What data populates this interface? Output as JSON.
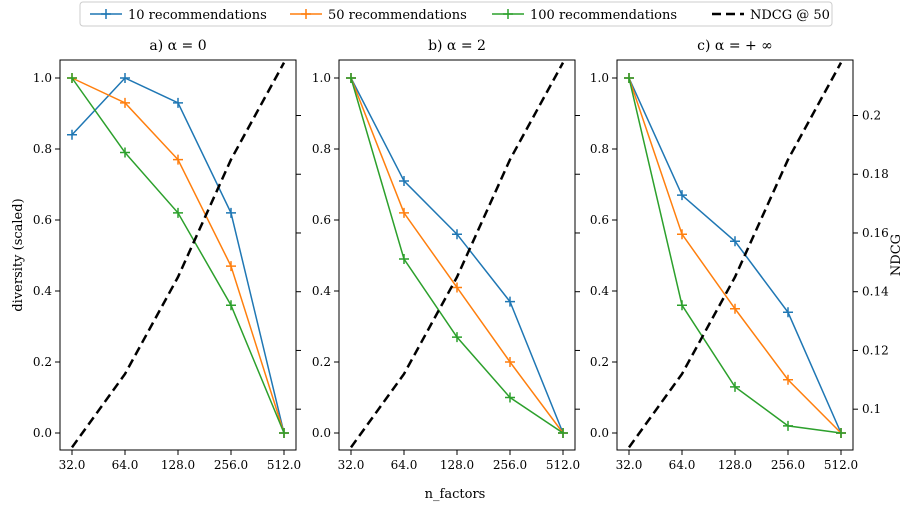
{
  "figure": {
    "xlabel": "n_factors",
    "ylabel_left": "diversity (scaled)",
    "ylabel_right": "NDCG"
  },
  "legend": [
    {
      "label": "10 recommendations",
      "color": "#1f77b4",
      "style": "plus-line"
    },
    {
      "label": "50 recommendations",
      "color": "#ff7f0e",
      "style": "plus-line"
    },
    {
      "label": "100 recommendations",
      "color": "#2ca02c",
      "style": "plus-line"
    },
    {
      "label": "NDCG @ 50",
      "color": "#000000",
      "style": "dashed"
    }
  ],
  "chart_data": [
    {
      "type": "line",
      "title": "a) α = 0",
      "x": [
        32,
        64,
        128,
        256,
        512
      ],
      "xticklabels": [
        "32.0",
        "64.0",
        "128.0",
        "256.0",
        "512.0"
      ],
      "xscale": "log2",
      "ylim": [
        0,
        1
      ],
      "yticklabels": [
        "0.0",
        "0.2",
        "0.4",
        "0.6",
        "0.8",
        "1.0"
      ],
      "series": [
        {
          "name": "10 recommendations",
          "color": "#1f77b4",
          "values": [
            0.84,
            1.0,
            0.93,
            0.62,
            0.0
          ]
        },
        {
          "name": "50 recommendations",
          "color": "#ff7f0e",
          "values": [
            1.0,
            0.93,
            0.77,
            0.47,
            0.0
          ]
        },
        {
          "name": "100 recommendations",
          "color": "#2ca02c",
          "values": [
            1.0,
            0.79,
            0.62,
            0.36,
            0.0
          ]
        }
      ],
      "ndcg": {
        "name": "NDCG @ 50",
        "color": "#000000",
        "values": [
          0.087,
          0.112,
          0.145,
          0.185,
          0.218
        ]
      }
    },
    {
      "type": "line",
      "title": "b) α = 2",
      "x": [
        32,
        64,
        128,
        256,
        512
      ],
      "xticklabels": [
        "32.0",
        "64.0",
        "128.0",
        "256.0",
        "512.0"
      ],
      "xscale": "log2",
      "ylim": [
        0,
        1
      ],
      "yticklabels": [
        "0.0",
        "0.2",
        "0.4",
        "0.6",
        "0.8",
        "1.0"
      ],
      "series": [
        {
          "name": "10 recommendations",
          "color": "#1f77b4",
          "values": [
            1.0,
            0.71,
            0.56,
            0.37,
            0.0
          ]
        },
        {
          "name": "50 recommendations",
          "color": "#ff7f0e",
          "values": [
            1.0,
            0.62,
            0.41,
            0.2,
            0.0
          ]
        },
        {
          "name": "100 recommendations",
          "color": "#2ca02c",
          "values": [
            1.0,
            0.49,
            0.27,
            0.1,
            0.0
          ]
        }
      ],
      "ndcg": {
        "name": "NDCG @ 50",
        "color": "#000000",
        "values": [
          0.087,
          0.112,
          0.145,
          0.185,
          0.218
        ]
      }
    },
    {
      "type": "line",
      "title": "c) α = + ∞",
      "x": [
        32,
        64,
        128,
        256,
        512
      ],
      "xticklabels": [
        "32.0",
        "64.0",
        "128.0",
        "256.0",
        "512.0"
      ],
      "xscale": "log2",
      "ylim": [
        0,
        1
      ],
      "yticklabels": [
        "0.0",
        "0.2",
        "0.4",
        "0.6",
        "0.8",
        "1.0"
      ],
      "series": [
        {
          "name": "10 recommendations",
          "color": "#1f77b4",
          "values": [
            1.0,
            0.67,
            0.54,
            0.34,
            0.0
          ]
        },
        {
          "name": "50 recommendations",
          "color": "#ff7f0e",
          "values": [
            1.0,
            0.56,
            0.35,
            0.15,
            0.0
          ]
        },
        {
          "name": "100 recommendations",
          "color": "#2ca02c",
          "values": [
            1.0,
            0.36,
            0.13,
            0.02,
            0.0
          ]
        }
      ],
      "ndcg": {
        "name": "NDCG @ 50",
        "color": "#000000",
        "values": [
          0.087,
          0.112,
          0.145,
          0.185,
          0.218
        ]
      }
    }
  ],
  "right_axis": {
    "ylim": [
      0.0861,
      0.2189
    ],
    "ticks": [
      0.1,
      0.12,
      0.14,
      0.16,
      0.18,
      0.2
    ],
    "ticklabels": [
      "0.1",
      "0.12",
      "0.14",
      "0.16",
      "0.18",
      "0.2"
    ]
  }
}
